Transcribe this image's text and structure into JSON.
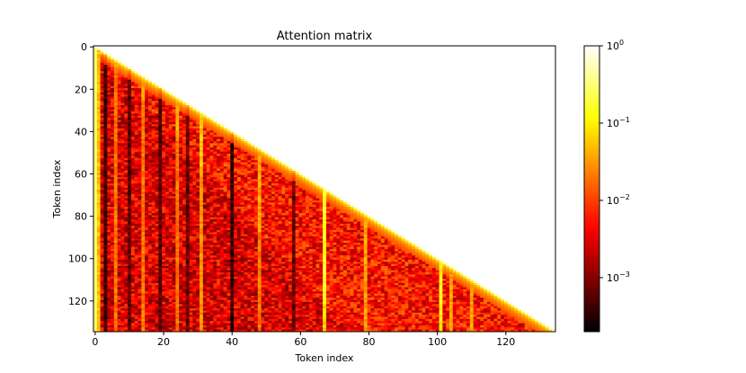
{
  "chart_data": {
    "type": "heatmap",
    "title": "Attention matrix",
    "xlabel": "Token index",
    "ylabel": "Token index",
    "size": 135,
    "mask": "lower-triangular (causal)",
    "x_ticks": [
      0,
      20,
      40,
      60,
      80,
      100,
      120
    ],
    "y_ticks": [
      0,
      20,
      40,
      60,
      80,
      100,
      120
    ],
    "colormap": "hot",
    "color_scale": "log",
    "color_range": [
      0.0002,
      1
    ],
    "colorbar_ticks": [
      {
        "value": 1,
        "base": "10",
        "exp": "0"
      },
      {
        "value": 0.1,
        "base": "10",
        "exp": "−1"
      },
      {
        "value": 0.01,
        "base": "10",
        "exp": "−2"
      },
      {
        "value": 0.001,
        "base": "10",
        "exp": "−3"
      }
    ],
    "diagonal_value": 0.6,
    "first_column_value": 0.3,
    "background_level": 0.003,
    "bright_columns": [
      {
        "col": 1,
        "value": 0.05
      },
      {
        "col": 6,
        "value": 0.02
      },
      {
        "col": 14,
        "value": 0.02
      },
      {
        "col": 24,
        "value": 0.02
      },
      {
        "col": 31,
        "value": 0.03
      },
      {
        "col": 48,
        "value": 0.02
      },
      {
        "col": 67,
        "value": 0.08
      },
      {
        "col": 79,
        "value": 0.02
      },
      {
        "col": 101,
        "value": 0.06
      },
      {
        "col": 104,
        "value": 0.02
      },
      {
        "col": 110,
        "value": 0.02
      }
    ],
    "dark_columns": [
      {
        "col": 3,
        "value": 0.0004
      },
      {
        "col": 10,
        "value": 0.0006
      },
      {
        "col": 19,
        "value": 0.0006
      },
      {
        "col": 27,
        "value": 0.0007
      },
      {
        "col": 40,
        "value": 0.0004
      },
      {
        "col": 58,
        "value": 0.0008
      }
    ]
  }
}
